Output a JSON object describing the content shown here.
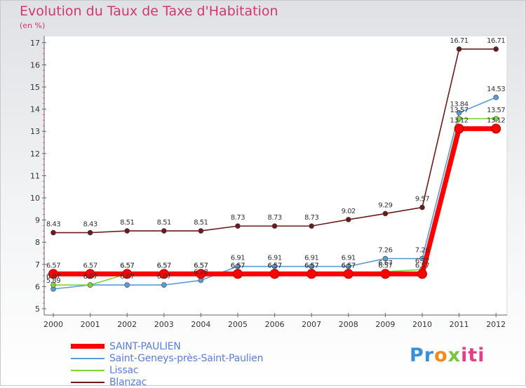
{
  "header": {
    "title": "Evolution du Taux de Taxe d'Habitation",
    "subtitle": "(en %)"
  },
  "logo": {
    "part1": "Pr",
    "part2": "o",
    "part3": "x",
    "part4": "iti"
  },
  "chart_data": {
    "type": "line",
    "title": "Evolution du Taux de Taxe d'Habitation",
    "ylabel": "(en %)",
    "xlabel": "",
    "x": [
      "2000",
      "2001",
      "2002",
      "2003",
      "2004",
      "2005",
      "2006",
      "2007",
      "2008",
      "2009",
      "2010",
      "2011",
      "2012"
    ],
    "ylim": [
      5,
      17
    ],
    "yticks": [
      "5",
      "6",
      "7",
      "8",
      "9",
      "10",
      "11",
      "12",
      "13",
      "14",
      "15",
      "16",
      "17"
    ],
    "grid": false,
    "legend_position": "bottom-left",
    "series": [
      {
        "name": "SAINT-PAULIEN",
        "color": "#ff0000",
        "values": [
          6.57,
          6.57,
          6.57,
          6.57,
          6.57,
          6.57,
          6.57,
          6.57,
          6.57,
          6.57,
          6.57,
          13.12,
          13.12
        ],
        "labels": [
          "6.57",
          "6.57",
          "6.57",
          "6.57",
          "6.57",
          "6.57",
          "6.57",
          "6.57",
          "6.57",
          "6.57",
          "6.57",
          "13.12",
          "13.12"
        ]
      },
      {
        "name": "Saint-Geneys-près-Saint-Paulien",
        "color": "#5b9bd5",
        "values": [
          5.89,
          6.07,
          6.07,
          6.07,
          6.28,
          6.91,
          6.91,
          6.91,
          6.91,
          7.26,
          7.26,
          13.84,
          14.53
        ],
        "labels": [
          "5.89",
          "6.07",
          "6.07",
          "6.07",
          "6.28",
          "6.91",
          "6.91",
          "6.91",
          "6.91",
          "7.26",
          "7.26",
          "13.84",
          "14.53"
        ]
      },
      {
        "name": "Lissac",
        "color": "#7fd43a",
        "values": [
          6.07,
          6.07,
          6.57,
          6.57,
          6.57,
          6.57,
          6.57,
          6.57,
          6.57,
          6.67,
          6.77,
          13.57,
          13.57
        ],
        "labels": [
          "6.07",
          "6.07",
          "6.57",
          "6.57",
          "6.57",
          "6.57",
          "6.57",
          "6.57",
          "6.57",
          "6.67",
          "6.77",
          "13.57",
          "13.57"
        ]
      },
      {
        "name": "Blanzac",
        "color": "#6b1a1a",
        "values": [
          8.43,
          8.43,
          8.51,
          8.51,
          8.51,
          8.73,
          8.73,
          8.73,
          9.02,
          9.29,
          9.57,
          16.71,
          16.71
        ],
        "labels": [
          "8.43",
          "8.43",
          "8.51",
          "8.51",
          "8.51",
          "8.73",
          "8.73",
          "8.73",
          "9.02",
          "9.29",
          "9.57",
          "16.71",
          "16.71"
        ]
      }
    ]
  }
}
